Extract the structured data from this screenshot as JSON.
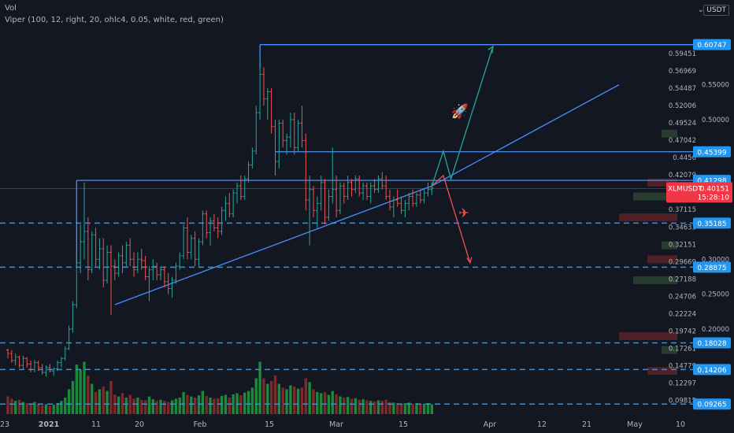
{
  "header": {
    "vol_label": "Vol",
    "indicator": "Viper (100, 12, right, 20, ohlc4, 0.05, white, red, green)",
    "currency": "USDT",
    "currency_icon": "dropdown-arrow-icon"
  },
  "colors": {
    "background": "#131722",
    "up": "#26a69a",
    "down": "#ef5350",
    "line": "#2962ff",
    "trend": "#4a90ff",
    "dashed": "#2196f3",
    "label_bg": "#2196f3",
    "price_tag": "#f23645",
    "vol_up": "#1b8a3a",
    "vol_down": "#7f2a2a",
    "up_arrow": "#26a69a",
    "down_arrow": "#ef5350"
  },
  "chart_data": {
    "type": "candlestick",
    "symbol": "XLMUSDT",
    "current_price": "0.40151",
    "countdown": "15:28:10",
    "x_ticks": [
      "23",
      "2021",
      "11",
      "20",
      "Feb",
      "15",
      "Mar",
      "15",
      "Apr",
      "12",
      "21",
      "May",
      "10"
    ],
    "y_ticks": [
      "0.59451",
      "0.56969",
      "0.54487",
      "0.52006",
      "0.49524",
      "0.47042",
      "0.4456",
      "0.42079",
      "0.37115",
      "0.34633",
      "0.32151",
      "0.29669",
      "0.27188",
      "0.24706",
      "0.22224",
      "0.19742",
      "0.17261",
      "0.14779",
      "0.12297",
      "0.09815"
    ],
    "y_ticks_round": [
      "0.55000",
      "0.50000",
      "0.30000",
      "0.25000",
      "0.20000"
    ],
    "level_labels": [
      "0.60747",
      "0.45399",
      "0.41298",
      "0.35185",
      "0.28875",
      "0.18028",
      "0.14206",
      "0.09265"
    ],
    "ohlc": [
      [
        0.17,
        0.172,
        0.158,
        0.165
      ],
      [
        0.165,
        0.17,
        0.152,
        0.155
      ],
      [
        0.155,
        0.165,
        0.148,
        0.16
      ],
      [
        0.16,
        0.162,
        0.145,
        0.148
      ],
      [
        0.148,
        0.162,
        0.142,
        0.158
      ],
      [
        0.158,
        0.16,
        0.145,
        0.15
      ],
      [
        0.15,
        0.155,
        0.138,
        0.142
      ],
      [
        0.142,
        0.156,
        0.138,
        0.152
      ],
      [
        0.152,
        0.155,
        0.14,
        0.145
      ],
      [
        0.145,
        0.15,
        0.135,
        0.138
      ],
      [
        0.138,
        0.148,
        0.132,
        0.145
      ],
      [
        0.145,
        0.15,
        0.138,
        0.14
      ],
      [
        0.14,
        0.145,
        0.133,
        0.143
      ],
      [
        0.143,
        0.155,
        0.14,
        0.152
      ],
      [
        0.152,
        0.16,
        0.145,
        0.158
      ],
      [
        0.158,
        0.175,
        0.155,
        0.172
      ],
      [
        0.172,
        0.205,
        0.17,
        0.2
      ],
      [
        0.2,
        0.24,
        0.195,
        0.235
      ],
      [
        0.235,
        0.31,
        0.23,
        0.295
      ],
      [
        0.295,
        0.35,
        0.28,
        0.325
      ],
      [
        0.325,
        0.41,
        0.3,
        0.34
      ],
      [
        0.34,
        0.36,
        0.27,
        0.285
      ],
      [
        0.285,
        0.34,
        0.28,
        0.335
      ],
      [
        0.335,
        0.345,
        0.29,
        0.3
      ],
      [
        0.3,
        0.33,
        0.285,
        0.315
      ],
      [
        0.315,
        0.33,
        0.26,
        0.27
      ],
      [
        0.27,
        0.32,
        0.265,
        0.31
      ],
      [
        0.31,
        0.32,
        0.22,
        0.29
      ],
      [
        0.29,
        0.3,
        0.27,
        0.28
      ],
      [
        0.28,
        0.31,
        0.275,
        0.305
      ],
      [
        0.305,
        0.32,
        0.28,
        0.295
      ],
      [
        0.295,
        0.325,
        0.29,
        0.32
      ],
      [
        0.32,
        0.33,
        0.29,
        0.3
      ],
      [
        0.3,
        0.31,
        0.275,
        0.285
      ],
      [
        0.285,
        0.31,
        0.28,
        0.3
      ],
      [
        0.3,
        0.315,
        0.285,
        0.298
      ],
      [
        0.298,
        0.305,
        0.27,
        0.275
      ],
      [
        0.275,
        0.29,
        0.24,
        0.285
      ],
      [
        0.285,
        0.3,
        0.27,
        0.29
      ],
      [
        0.29,
        0.295,
        0.27,
        0.278
      ],
      [
        0.278,
        0.29,
        0.27,
        0.285
      ],
      [
        0.285,
        0.29,
        0.26,
        0.268
      ],
      [
        0.268,
        0.28,
        0.25,
        0.258
      ],
      [
        0.258,
        0.275,
        0.245,
        0.27
      ],
      [
        0.27,
        0.295,
        0.265,
        0.29
      ],
      [
        0.29,
        0.31,
        0.285,
        0.305
      ],
      [
        0.305,
        0.35,
        0.3,
        0.345
      ],
      [
        0.345,
        0.36,
        0.3,
        0.31
      ],
      [
        0.31,
        0.335,
        0.3,
        0.33
      ],
      [
        0.33,
        0.34,
        0.29,
        0.3
      ],
      [
        0.3,
        0.33,
        0.29,
        0.325
      ],
      [
        0.325,
        0.37,
        0.32,
        0.365
      ],
      [
        0.365,
        0.37,
        0.33,
        0.338
      ],
      [
        0.338,
        0.36,
        0.32,
        0.355
      ],
      [
        0.355,
        0.365,
        0.34,
        0.345
      ],
      [
        0.345,
        0.36,
        0.33,
        0.34
      ],
      [
        0.34,
        0.375,
        0.335,
        0.37
      ],
      [
        0.37,
        0.39,
        0.355,
        0.38
      ],
      [
        0.38,
        0.395,
        0.36,
        0.365
      ],
      [
        0.365,
        0.4,
        0.36,
        0.395
      ],
      [
        0.395,
        0.41,
        0.38,
        0.405
      ],
      [
        0.405,
        0.42,
        0.385,
        0.39
      ],
      [
        0.39,
        0.42,
        0.385,
        0.415
      ],
      [
        0.415,
        0.44,
        0.41,
        0.435
      ],
      [
        0.435,
        0.46,
        0.43,
        0.455
      ],
      [
        0.455,
        0.52,
        0.45,
        0.51
      ],
      [
        0.51,
        0.59,
        0.5,
        0.565
      ],
      [
        0.565,
        0.575,
        0.52,
        0.53
      ],
      [
        0.53,
        0.545,
        0.5,
        0.54
      ],
      [
        0.54,
        0.545,
        0.48,
        0.49
      ],
      [
        0.49,
        0.5,
        0.42,
        0.44
      ],
      [
        0.44,
        0.5,
        0.43,
        0.495
      ],
      [
        0.495,
        0.5,
        0.46,
        0.47
      ],
      [
        0.47,
        0.48,
        0.45,
        0.475
      ],
      [
        0.475,
        0.51,
        0.46,
        0.5
      ],
      [
        0.5,
        0.51,
        0.45,
        0.46
      ],
      [
        0.46,
        0.5,
        0.455,
        0.495
      ],
      [
        0.495,
        0.52,
        0.46,
        0.47
      ],
      [
        0.47,
        0.48,
        0.37,
        0.385
      ],
      [
        0.385,
        0.42,
        0.32,
        0.4
      ],
      [
        0.4,
        0.405,
        0.36,
        0.37
      ],
      [
        0.37,
        0.39,
        0.345,
        0.38
      ],
      [
        0.38,
        0.42,
        0.37,
        0.41
      ],
      [
        0.41,
        0.415,
        0.35,
        0.36
      ],
      [
        0.36,
        0.4,
        0.355,
        0.39
      ],
      [
        0.39,
        0.46,
        0.38,
        0.4
      ],
      [
        0.4,
        0.42,
        0.36,
        0.37
      ],
      [
        0.37,
        0.41,
        0.365,
        0.405
      ],
      [
        0.405,
        0.41,
        0.38,
        0.39
      ],
      [
        0.39,
        0.42,
        0.385,
        0.41
      ],
      [
        0.41,
        0.415,
        0.39,
        0.4
      ],
      [
        0.4,
        0.42,
        0.395,
        0.415
      ],
      [
        0.415,
        0.42,
        0.39,
        0.395
      ],
      [
        0.395,
        0.41,
        0.385,
        0.405
      ],
      [
        0.405,
        0.41,
        0.385,
        0.39
      ],
      [
        0.39,
        0.41,
        0.38,
        0.405
      ],
      [
        0.405,
        0.415,
        0.395,
        0.4
      ],
      [
        0.4,
        0.42,
        0.395,
        0.415
      ],
      [
        0.415,
        0.425,
        0.4,
        0.405
      ],
      [
        0.405,
        0.42,
        0.385,
        0.39
      ],
      [
        0.39,
        0.4,
        0.37,
        0.375
      ],
      [
        0.375,
        0.39,
        0.36,
        0.385
      ],
      [
        0.385,
        0.4,
        0.375,
        0.38
      ],
      [
        0.38,
        0.39,
        0.365,
        0.37
      ],
      [
        0.37,
        0.385,
        0.36,
        0.38
      ],
      [
        0.38,
        0.395,
        0.37,
        0.39
      ],
      [
        0.39,
        0.4,
        0.375,
        0.38
      ],
      [
        0.38,
        0.395,
        0.375,
        0.392
      ],
      [
        0.392,
        0.4,
        0.38,
        0.385
      ],
      [
        0.385,
        0.4,
        0.38,
        0.395
      ],
      [
        0.395,
        0.41,
        0.39,
        0.4
      ],
      [
        0.4,
        0.41,
        0.392,
        0.402
      ]
    ],
    "volume": [
      3.2,
      2.8,
      2.4,
      2.6,
      2.2,
      2.0,
      1.8,
      2.2,
      1.9,
      1.6,
      1.8,
      1.5,
      1.7,
      2.0,
      2.4,
      3.0,
      4.5,
      6.0,
      9.0,
      8.0,
      9.5,
      7.0,
      5.5,
      4.0,
      4.5,
      5.0,
      4.2,
      6.0,
      3.5,
      3.2,
      3.8,
      3.0,
      3.5,
      2.8,
      3.0,
      2.6,
      2.5,
      3.2,
      2.7,
      2.4,
      2.6,
      2.4,
      2.2,
      2.5,
      2.8,
      3.0,
      4.0,
      3.5,
      3.2,
      3.0,
      3.4,
      4.2,
      3.3,
      3.0,
      2.8,
      2.9,
      3.3,
      3.5,
      3.0,
      3.6,
      3.8,
      3.4,
      3.9,
      4.2,
      4.8,
      6.5,
      9.5,
      6.5,
      5.5,
      6.0,
      7.0,
      5.5,
      4.8,
      4.5,
      5.2,
      5.0,
      4.6,
      4.8,
      6.5,
      5.8,
      4.5,
      4.0,
      3.8,
      4.0,
      3.5,
      4.2,
      3.6,
      3.2,
      3.0,
      3.1,
      2.8,
      2.9,
      2.6,
      2.7,
      2.5,
      2.4,
      2.3,
      2.5,
      2.4,
      2.6,
      2.2,
      2.1,
      2.0,
      1.9,
      2.0,
      2.1,
      1.9,
      2.0,
      1.8,
      1.9,
      2.0,
      1.8
    ],
    "horizontal_levels": [
      0.60747,
      0.45399,
      0.41298
    ],
    "dashed_levels": [
      0.35185,
      0.28875,
      0.18028,
      0.14206,
      0.09265
    ],
    "trendlines": [
      {
        "from": [
          28,
          0.235
        ],
        "to": [
          111,
          0.405
        ]
      },
      {
        "from": [
          111,
          0.405
        ],
        "to": [
          160,
          0.55
        ]
      }
    ],
    "volume_profile": [
      0.48,
      0.41,
      0.39,
      0.36,
      0.32,
      0.3,
      0.27,
      0.19,
      0.17,
      0.14
    ]
  }
}
